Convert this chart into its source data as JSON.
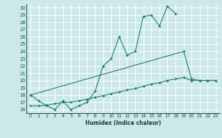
{
  "title": "",
  "xlabel": "Humidex (Indice chaleur)",
  "bg_color": "#cce8e8",
  "grid_color": "#ffffff",
  "line_color": "#1a7a6e",
  "xlim": [
    -0.5,
    23.5
  ],
  "ylim": [
    15.5,
    30.5
  ],
  "xticks": [
    0,
    1,
    2,
    3,
    4,
    5,
    6,
    7,
    8,
    9,
    10,
    11,
    12,
    13,
    14,
    15,
    16,
    17,
    18,
    19,
    20,
    21,
    22,
    23
  ],
  "yticks": [
    16,
    17,
    18,
    19,
    20,
    21,
    22,
    23,
    24,
    25,
    26,
    27,
    28,
    29,
    30
  ],
  "series1_x": [
    0,
    1,
    2,
    3,
    4,
    5,
    6,
    7,
    8,
    9,
    10,
    11,
    12,
    13,
    14,
    15,
    16,
    17,
    18
  ],
  "series1_y": [
    18.0,
    17.2,
    16.5,
    16.0,
    17.2,
    16.0,
    16.5,
    17.0,
    18.5,
    22.0,
    23.0,
    26.0,
    23.5,
    24.0,
    28.8,
    29.0,
    27.5,
    30.2,
    29.2
  ],
  "series2_x": [
    0,
    19,
    20,
    21,
    22,
    23
  ],
  "series2_y": [
    18.0,
    24.0,
    20.2,
    20.0,
    20.0,
    20.0
  ],
  "series3_x": [
    0,
    1,
    2,
    3,
    4,
    5,
    6,
    7,
    8,
    9,
    10,
    11,
    12,
    13,
    14,
    15,
    16,
    17,
    18,
    19,
    20,
    21,
    22,
    23
  ],
  "series3_y": [
    16.5,
    16.5,
    16.6,
    16.8,
    17.0,
    17.0,
    17.2,
    17.4,
    17.7,
    17.9,
    18.2,
    18.4,
    18.7,
    18.9,
    19.2,
    19.5,
    19.7,
    20.0,
    20.2,
    20.4,
    20.0,
    20.0,
    20.0,
    20.0
  ]
}
